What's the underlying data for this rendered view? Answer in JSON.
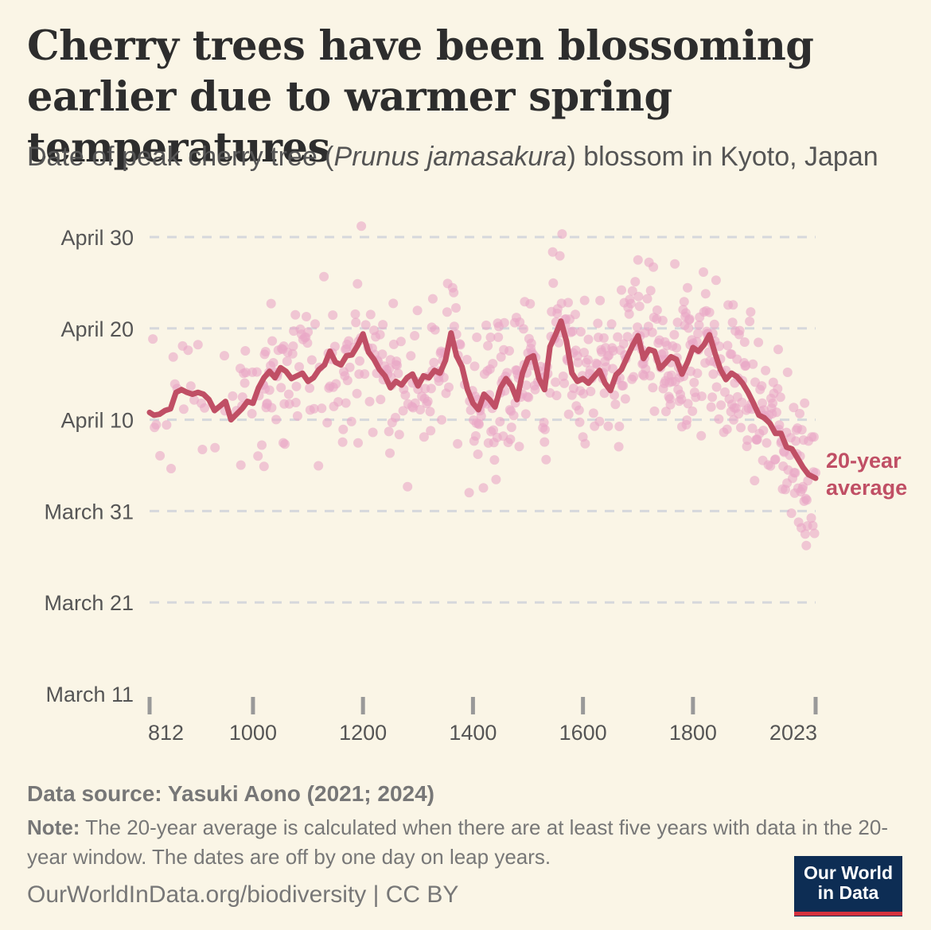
{
  "title": "Cherry trees have been blossoming earlier due to warmer spring temperatures",
  "subtitle": {
    "before": "Date of peak cherry tree (",
    "species": "Prunus jamasakura",
    "after": ") blossom in Kyoto, Japan"
  },
  "source": "Data source: Yasuki Aono (2021; 2024)",
  "note": {
    "label": "Note:",
    "text": " The 20-year average is calculated when there are at least five years with data in the 20-year window. The dates are off by one day on leap years."
  },
  "footer": "OurWorldInData.org/biodiversity | CC BY",
  "logo": {
    "line1": "Our World",
    "line2": "in Data"
  },
  "colors": {
    "background": "#faf5e6",
    "points": "#e9a6c6",
    "average_line": "#c04f65",
    "gridline": "#d6d8dc",
    "logo_bg": "#0d2d54",
    "logo_accent": "#d4313d"
  },
  "chart_data": {
    "type": "scatter",
    "x_axis": {
      "ticks": [
        812,
        1000,
        1200,
        1400,
        1600,
        1800,
        2023
      ],
      "range": [
        812,
        2023
      ]
    },
    "y_axis": {
      "ticks": [
        {
          "label": "March 11",
          "day_of_year": 70
        },
        {
          "label": "March 21",
          "day_of_year": 80
        },
        {
          "label": "March 31",
          "day_of_year": 90
        },
        {
          "label": "April 10",
          "day_of_year": 100
        },
        {
          "label": "April 20",
          "day_of_year": 110
        },
        {
          "label": "April 30",
          "day_of_year": 120
        }
      ],
      "range": [
        70,
        120
      ],
      "grid": true
    },
    "series": [
      {
        "name": "20-year average",
        "type": "line",
        "x": [
          812,
          820,
          830,
          840,
          850,
          860,
          870,
          880,
          890,
          900,
          910,
          920,
          930,
          940,
          950,
          960,
          970,
          980,
          990,
          1000,
          1010,
          1020,
          1030,
          1040,
          1050,
          1060,
          1070,
          1080,
          1090,
          1100,
          1110,
          1120,
          1130,
          1140,
          1150,
          1160,
          1170,
          1180,
          1190,
          1200,
          1210,
          1220,
          1230,
          1240,
          1250,
          1260,
          1270,
          1280,
          1290,
          1300,
          1310,
          1320,
          1330,
          1340,
          1350,
          1360,
          1370,
          1380,
          1390,
          1400,
          1410,
          1420,
          1430,
          1440,
          1450,
          1460,
          1470,
          1480,
          1490,
          1500,
          1510,
          1520,
          1530,
          1540,
          1550,
          1560,
          1570,
          1580,
          1590,
          1600,
          1610,
          1620,
          1630,
          1640,
          1650,
          1660,
          1670,
          1680,
          1690,
          1700,
          1710,
          1720,
          1730,
          1740,
          1750,
          1760,
          1770,
          1780,
          1790,
          1800,
          1810,
          1820,
          1830,
          1840,
          1850,
          1860,
          1870,
          1880,
          1890,
          1900,
          1910,
          1920,
          1930,
          1940,
          1950,
          1960,
          1970,
          1980,
          1990,
          2000,
          2010,
          2023
        ],
        "y": [
          100.8,
          100.5,
          100.6,
          101,
          101.2,
          103,
          103.3,
          103,
          102.8,
          103,
          102.8,
          102.2,
          101,
          101.5,
          102,
          100,
          100.6,
          101.2,
          102,
          101.8,
          103.5,
          104.6,
          105.3,
          104.6,
          105.7,
          105.3,
          104.5,
          104.8,
          105.1,
          104.2,
          104.6,
          105.5,
          106,
          107.5,
          106.3,
          106,
          107,
          107.1,
          108.1,
          109.4,
          107.4,
          106.6,
          105.5,
          104.8,
          103.5,
          104.2,
          103.8,
          104.6,
          105,
          103.7,
          104.8,
          104.6,
          105.4,
          105.1,
          106.5,
          109.5,
          107,
          105.8,
          103.3,
          101.8,
          101.1,
          102.8,
          102.2,
          101.4,
          103.5,
          104.5,
          103.7,
          102.2,
          105.1,
          106.7,
          107,
          104.5,
          103.3,
          108,
          109.3,
          110.8,
          108.6,
          105.1,
          104.2,
          104.5,
          104,
          104.7,
          105.4,
          104,
          103.2,
          104.9,
          105.5,
          106.8,
          108.1,
          109.2,
          106.7,
          107.7,
          107.5,
          105.6,
          106.2,
          106.9,
          106.6,
          105,
          106.3,
          107.9,
          107.5,
          108.2,
          109.3,
          107.3,
          105.5,
          104.4,
          105.1,
          104.7,
          104,
          103,
          101.8,
          100.5,
          100.2,
          99.6,
          98.5,
          98.5,
          97,
          96.8,
          95.8,
          94.8,
          94,
          93.6
        ]
      }
    ],
    "label_annotation": {
      "line1": "20-year",
      "line2": "average"
    }
  }
}
